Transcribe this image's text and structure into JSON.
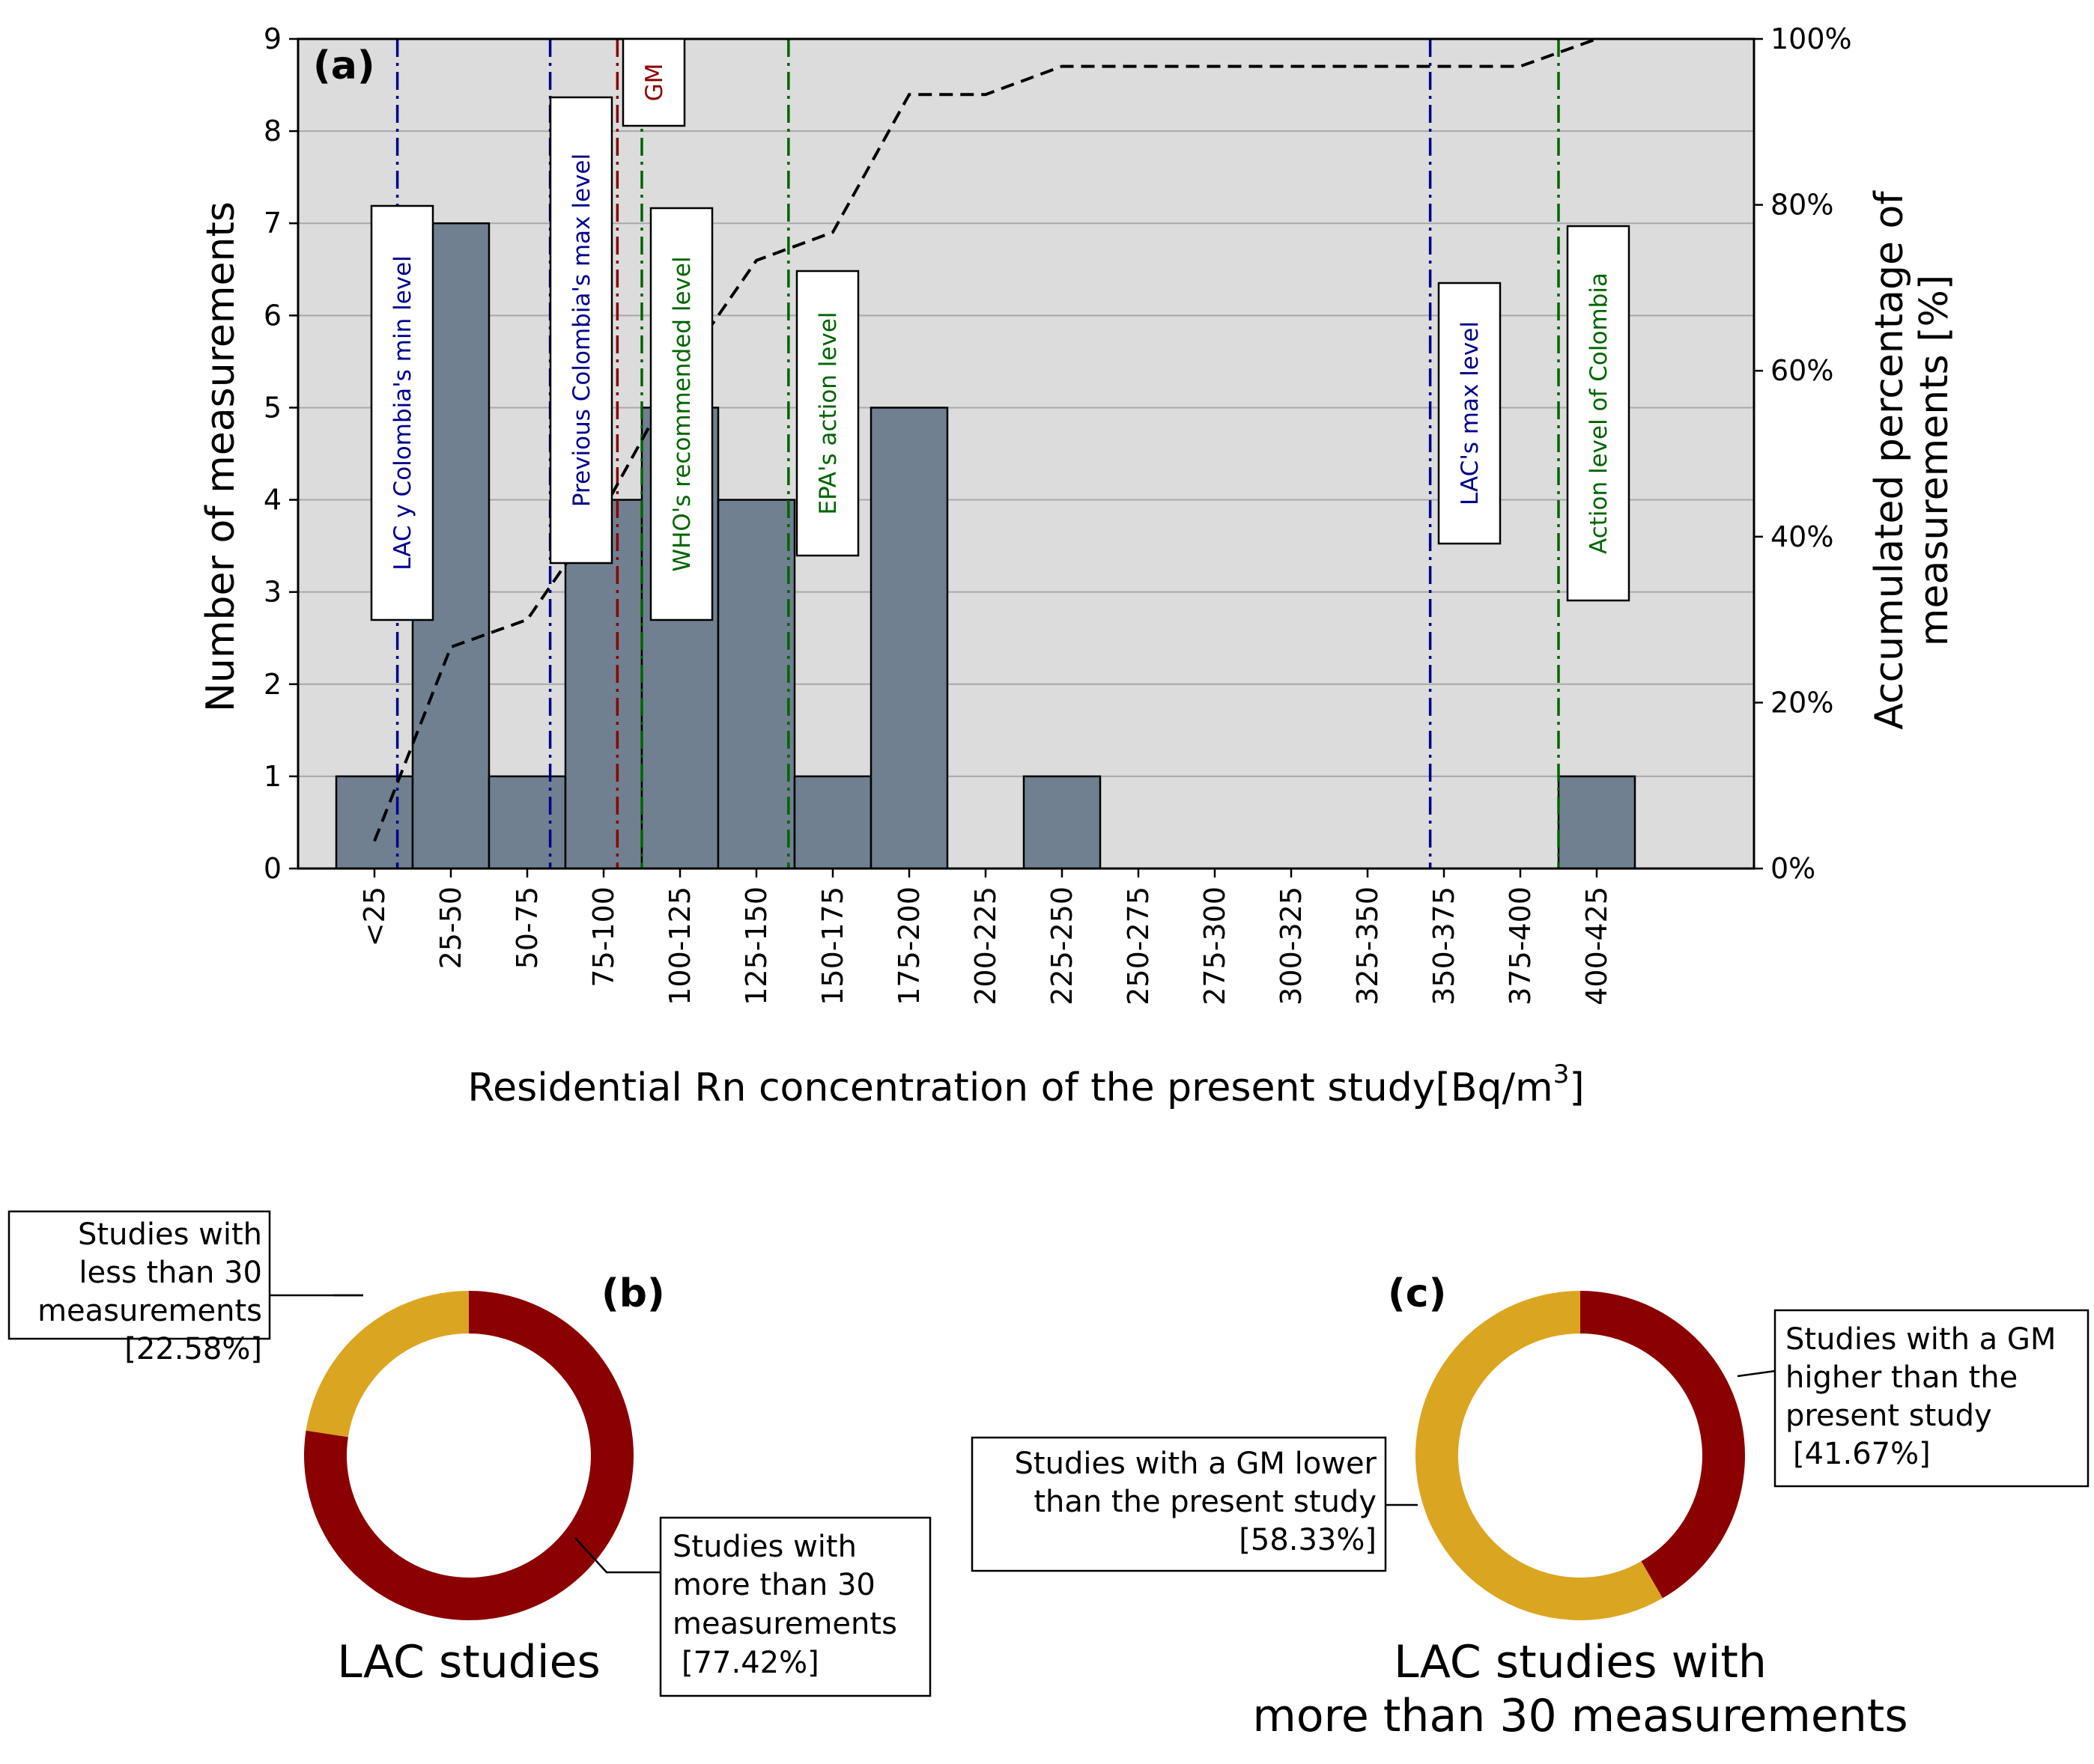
{
  "chart_data": [
    {
      "type": "bar",
      "panel_label": "(a)",
      "xlabel": "Residential Rn concentration of the present study[Bq/m",
      "xlabel_sup": "3",
      "xlabel_close": "]",
      "ylabel": "Number of measurements",
      "ylabel_right_line1": "Accumulated percentage of",
      "ylabel_right_line2": "measurements [%]",
      "ylim": [
        0,
        9
      ],
      "y_ticks": [
        "0",
        "1",
        "2",
        "3",
        "4",
        "5",
        "6",
        "7",
        "8",
        "9"
      ],
      "y2lim": [
        0,
        100
      ],
      "y2_ticks": [
        "0%",
        "20%",
        "40%",
        "60%",
        "80%",
        "100%"
      ],
      "grid": "horizontal",
      "categories": [
        "<25",
        "25-50",
        "50-75",
        "75-100",
        "100-125",
        "125-150",
        "150-175",
        "175-200",
        "200-225",
        "225-250",
        "250-275",
        "275-300",
        "300-325",
        "325-350",
        "350-375",
        "375-400",
        "400-425"
      ],
      "values": [
        1,
        7,
        1,
        4,
        5,
        4,
        1,
        5,
        0,
        1,
        0,
        0,
        0,
        0,
        0,
        0,
        1
      ],
      "cumulative_percent": [
        3.3,
        26.7,
        30.0,
        43.3,
        60.0,
        73.3,
        76.7,
        93.3,
        93.3,
        96.7,
        96.7,
        96.7,
        96.7,
        96.7,
        96.7,
        96.7,
        100.0
      ],
      "colors": {
        "bar": "#708090",
        "plot_bg": "#dcdcdc",
        "navy": "#00008b",
        "green": "#006400",
        "darkred": "#8b0000"
      },
      "reference_lines": [
        {
          "label": "LAC y Colombia's min level",
          "x": 20,
          "color": "navy"
        },
        {
          "label": "Previous Colombia's max level",
          "x": 70,
          "color": "navy"
        },
        {
          "label": "GM",
          "x": 92,
          "color": "darkred"
        },
        {
          "label": "WHO's recommended level",
          "x": 100,
          "color": "green"
        },
        {
          "label": "EPA's action level",
          "x": 148,
          "color": "green"
        },
        {
          "label": "LAC's max level",
          "x": 358,
          "color": "navy"
        },
        {
          "label": "Action level of Colombia",
          "x": 400,
          "color": "green"
        }
      ]
    },
    {
      "type": "pie",
      "panel_label": "(b)",
      "title": "LAC studies",
      "colors": {
        "outer": "#8b0000",
        "inner": "#daa520"
      },
      "slices": [
        {
          "label_lines": [
            "Studies with",
            "more than 30",
            "measurements",
            "[77.42%]"
          ],
          "value": 77.42,
          "color": "#8b0000"
        },
        {
          "label_lines": [
            "Studies with",
            "less than 30",
            "measurements",
            "[22.58%]"
          ],
          "value": 22.58,
          "color": "#daa520"
        }
      ]
    },
    {
      "type": "pie",
      "panel_label": "(c)",
      "title_line1": "LAC studies with",
      "title_line2": "more than 30 measurements",
      "slices": [
        {
          "label_lines": [
            "Studies with a GM",
            "higher than the",
            "present study",
            "[41.67%]"
          ],
          "value": 41.67,
          "color": "#8b0000"
        },
        {
          "label_lines": [
            "Studies with a GM lower",
            "than the present study",
            "[58.33%]"
          ],
          "value": 58.33,
          "color": "#daa520"
        }
      ]
    }
  ]
}
